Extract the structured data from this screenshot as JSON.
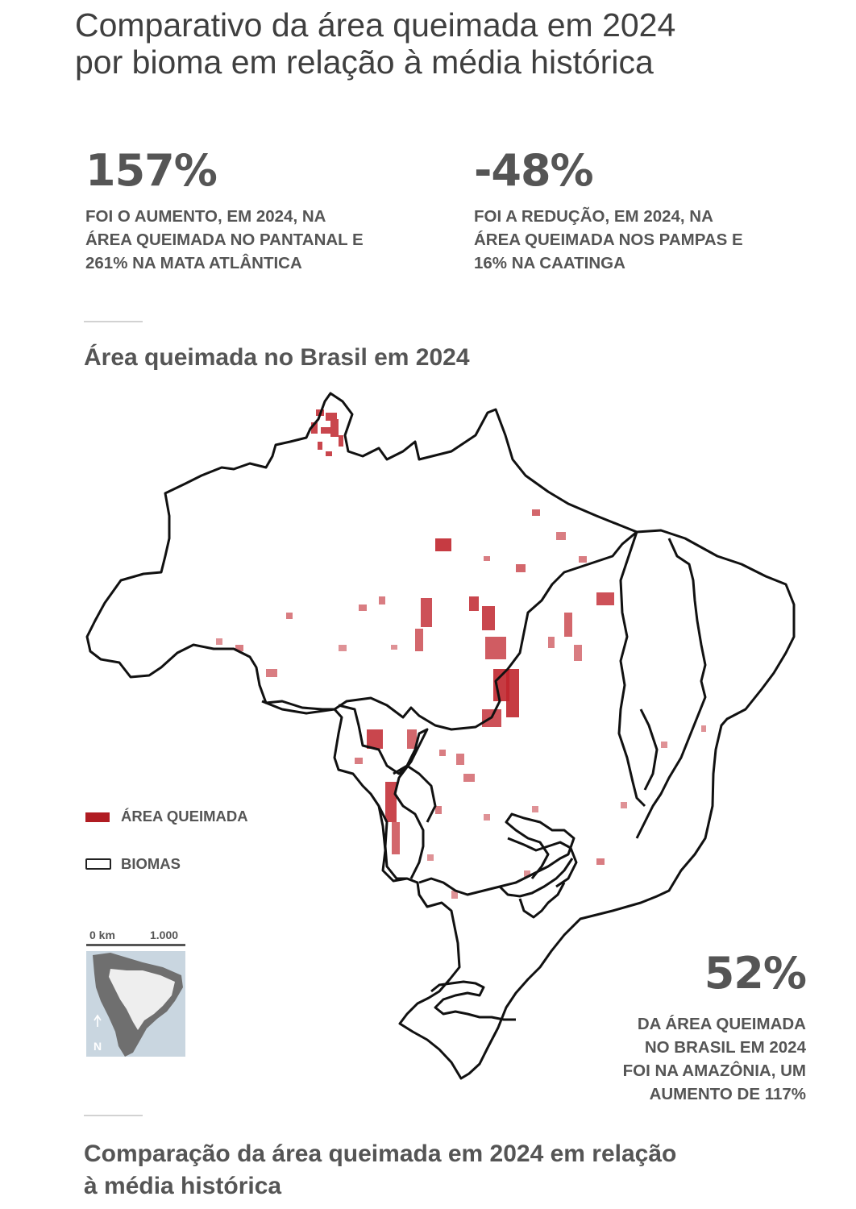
{
  "headline": {
    "line1": "Comparativo da área queimada em 2024",
    "line2": "por bioma em relação à média histórica"
  },
  "stats": [
    {
      "value": "157%",
      "lines": [
        "FOI O AUMENTO, EM 2024, NA",
        "ÁREA QUEIMADA NO PANTANAL E",
        "261% NA MATA ATLÂNTICA"
      ]
    },
    {
      "value": "-48%",
      "lines": [
        "FOI A REDUÇÃO, EM 2024, NA",
        "ÁREA QUEIMADA NOS PAMPAS E",
        "16% NA CAATINGA"
      ]
    },
    {
      "value": "52%",
      "lines": [
        "DA ÁREA QUEIMADA",
        "NO BRASIL EM 2024",
        "FOI NA AMAZÔNIA, UM",
        "AUMENTO DE 117%"
      ]
    }
  ],
  "map": {
    "title": "Área queimada no Brasil em 2024",
    "legend": [
      {
        "label": "ÁREA QUEIMADA",
        "color": "#b01c22"
      },
      {
        "label": "BIOMAS",
        "color": "#ffffff",
        "border": "#222222"
      }
    ],
    "scale": {
      "start": "0 km",
      "end": "1.000"
    },
    "north_label": "N",
    "burn_color": "#c0262e",
    "border_color": "#111111"
  },
  "footer": {
    "title_line1": "Comparação da área queimada em 2024 em relação",
    "title_line2": "à média histórica"
  },
  "colors": {
    "text": "#555555",
    "headline": "#3f3f3f",
    "rule": "#d2d2d2",
    "inset_sea": "#c9d6e0",
    "inset_land_dark": "#6f6f6f",
    "inset_land_light": "#eeeeee"
  }
}
